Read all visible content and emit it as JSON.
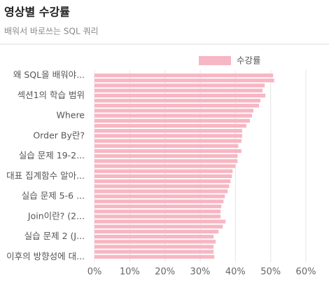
{
  "chart_data": {
    "type": "barh",
    "title": "영상별 수강률",
    "subtitle": "배워서 바로쓰는 SQL 쿼리",
    "categories": [
      "왜 SQL을 배워야...",
      null,
      null,
      null,
      "섹션1의 학습 범위",
      null,
      null,
      null,
      "Where",
      null,
      null,
      null,
      "Order By란?",
      null,
      null,
      null,
      "실습 문제 19-2...",
      null,
      null,
      null,
      "대표 집계함수 알아...",
      null,
      null,
      null,
      "실습 문제 5-6 ...",
      null,
      null,
      null,
      "Join이란? (2...",
      null,
      null,
      null,
      "실습 문제 2 (J...",
      null,
      null,
      null,
      "이후의 방향성에 대..."
    ],
    "series": [
      {
        "name": "수강률",
        "color": "#f7b6c3",
        "values": [
          50.7,
          51.0,
          48.3,
          47.7,
          48.5,
          47.1,
          46.7,
          45.1,
          44.7,
          44.1,
          43.1,
          41.9,
          41.9,
          41.7,
          40.8,
          41.7,
          40.6,
          40.6,
          40.0,
          39.2,
          39.0,
          38.6,
          38.2,
          37.8,
          37.0,
          36.6,
          36.0,
          35.8,
          35.8,
          37.2,
          36.4,
          35.2,
          33.8,
          34.4,
          33.8,
          33.8,
          34.0
        ]
      }
    ],
    "xlim": [
      0,
      60
    ],
    "xticks": [
      {
        "value": 0,
        "label": "0%"
      },
      {
        "value": 10,
        "label": "10%"
      },
      {
        "value": 20,
        "label": "20%"
      },
      {
        "value": 30,
        "label": "30%"
      },
      {
        "value": 40,
        "label": "40%"
      },
      {
        "value": 50,
        "label": "50%"
      },
      {
        "value": 60,
        "label": "60%"
      }
    ],
    "grid": true,
    "legend": "top-right"
  }
}
